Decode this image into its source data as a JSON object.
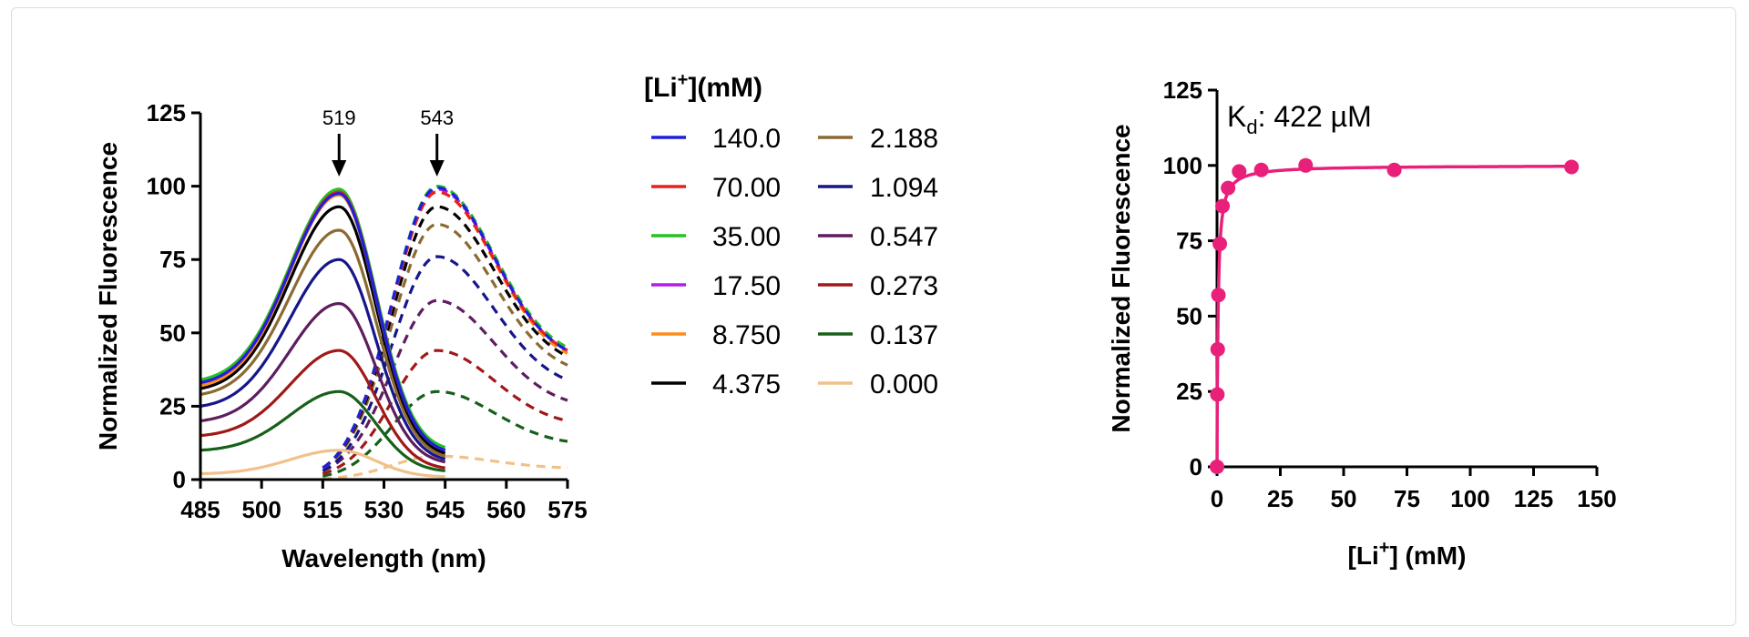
{
  "chart_data": [
    {
      "type": "line",
      "xlabel": "Wavelength (nm)",
      "ylabel": "Normalized Fluorescence",
      "xlim": [
        485,
        575
      ],
      "ylim": [
        0,
        125
      ],
      "xticks": [
        485,
        500,
        515,
        530,
        545,
        560,
        575
      ],
      "yticks": [
        0,
        25,
        50,
        75,
        100,
        125
      ],
      "grid": false,
      "legend_title": "(mM)",
      "legend_title_prefix": "[Li",
      "legend_title_sup": "+",
      "legend_title_suffix": "]",
      "legend_position": "right",
      "annotations": [
        {
          "label": "519",
          "x": 519
        },
        {
          "label": "543",
          "x": 543
        }
      ],
      "line_styles": {
        "excitation": {
          "style": "solid",
          "x_range": [
            485,
            545
          ],
          "peak_x": 519
        },
        "emission": {
          "style": "dashed",
          "x_range": [
            515,
            575
          ],
          "peak_x": 543
        }
      },
      "series": [
        {
          "name": "140.0",
          "color": "#1f1fe0",
          "excitation": {
            "peak": 97.5,
            "start": 33,
            "end": 10
          },
          "emission": {
            "peak": 99.5,
            "start": 4,
            "end": 44
          }
        },
        {
          "name": "70.00",
          "color": "#e8201e",
          "excitation": {
            "peak": 98,
            "start": 33,
            "end": 10
          },
          "emission": {
            "peak": 98,
            "start": 4,
            "end": 44
          }
        },
        {
          "name": "35.00",
          "color": "#22c322",
          "excitation": {
            "peak": 99,
            "start": 34,
            "end": 11
          },
          "emission": {
            "peak": 100,
            "start": 4,
            "end": 45
          }
        },
        {
          "name": "17.50",
          "color": "#b21ee6",
          "excitation": {
            "peak": 98.5,
            "start": 33,
            "end": 10
          },
          "emission": {
            "peak": 99,
            "start": 4,
            "end": 44
          }
        },
        {
          "name": "8.750",
          "color": "#ff8c1a",
          "excitation": {
            "peak": 97,
            "start": 32,
            "end": 10
          },
          "emission": {
            "peak": 98,
            "start": 4,
            "end": 43
          }
        },
        {
          "name": "4.375",
          "color": "#000000",
          "excitation": {
            "peak": 93,
            "start": 31,
            "end": 9
          },
          "emission": {
            "peak": 93,
            "start": 4,
            "end": 42
          }
        },
        {
          "name": "2.188",
          "color": "#8b6a32",
          "excitation": {
            "peak": 85,
            "start": 29,
            "end": 8
          },
          "emission": {
            "peak": 87,
            "start": 4,
            "end": 39
          }
        },
        {
          "name": "1.094",
          "color": "#16168a",
          "excitation": {
            "peak": 75,
            "start": 25,
            "end": 7
          },
          "emission": {
            "peak": 76,
            "start": 3,
            "end": 34
          }
        },
        {
          "name": "0.547",
          "color": "#5e1d5e",
          "excitation": {
            "peak": 60,
            "start": 20,
            "end": 6
          },
          "emission": {
            "peak": 61,
            "start": 3,
            "end": 27
          }
        },
        {
          "name": "0.273",
          "color": "#a01818",
          "excitation": {
            "peak": 44,
            "start": 15,
            "end": 4
          },
          "emission": {
            "peak": 44,
            "start": 2,
            "end": 20
          }
        },
        {
          "name": "0.137",
          "color": "#16601a",
          "excitation": {
            "peak": 30,
            "start": 10,
            "end": 3
          },
          "emission": {
            "peak": 30,
            "start": 1,
            "end": 13
          }
        },
        {
          "name": "0.000",
          "color": "#f2c08a",
          "excitation": {
            "peak": 10,
            "start": 2,
            "end": 1
          },
          "emission": {
            "peak": 8,
            "start": 0,
            "end": 4
          }
        }
      ]
    },
    {
      "type": "scatter",
      "xlabel_prefix": "[Li",
      "xlabel_sup": "+",
      "xlabel_suffix": "] (mM)",
      "ylabel": "Normalized Fluorescence",
      "xlim": [
        0,
        150
      ],
      "ylim": [
        0,
        125
      ],
      "xticks": [
        0,
        25,
        50,
        75,
        100,
        125,
        150
      ],
      "yticks": [
        0,
        25,
        50,
        75,
        100,
        125
      ],
      "grid": false,
      "color": "#e8207a",
      "annotation": {
        "prefix": "K",
        "sub": "d",
        "text": ": 422 µM"
      },
      "points": [
        {
          "x": 0,
          "y": 0
        },
        {
          "x": 0.137,
          "y": 24
        },
        {
          "x": 0.273,
          "y": 39
        },
        {
          "x": 0.547,
          "y": 57
        },
        {
          "x": 1.094,
          "y": 74
        },
        {
          "x": 2.188,
          "y": 86.5
        },
        {
          "x": 4.375,
          "y": 92.5
        },
        {
          "x": 8.75,
          "y": 98
        },
        {
          "x": 17.5,
          "y": 98.5
        },
        {
          "x": 35,
          "y": 100,
          "err": 1.5
        },
        {
          "x": 70,
          "y": 98.5
        },
        {
          "x": 140,
          "y": 99.5
        }
      ],
      "fit": {
        "model": "hyperbolic",
        "kd_mM": 0.422,
        "bmax": 100
      }
    }
  ]
}
